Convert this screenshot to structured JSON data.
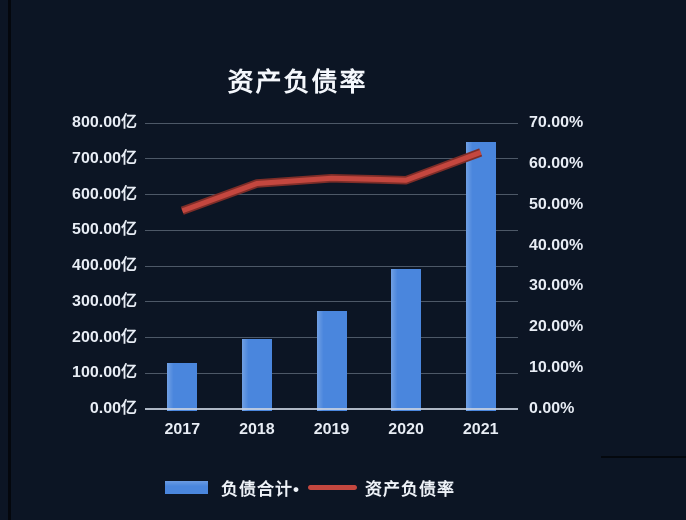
{
  "chart_data": {
    "type": "bar",
    "subtype": "bar+line combo, dual axis",
    "title": "资产负债率",
    "categories": [
      "2017",
      "2018",
      "2019",
      "2020",
      "2021"
    ],
    "series": [
      {
        "name": "负债合计",
        "chart_type": "bar",
        "axis": "left",
        "unit": "亿",
        "values": [
          130,
          197,
          275,
          393,
          748
        ],
        "color": "#4a86dd"
      },
      {
        "name": "资产负债率",
        "chart_type": "line",
        "axis": "right",
        "unit": "%",
        "values": [
          48.5,
          55.2,
          56.5,
          56.0,
          62.8
        ],
        "color": "#c4473f"
      }
    ],
    "left_axis": {
      "min": 0,
      "max": 800,
      "step": 100,
      "unit": "亿",
      "tick_labels": [
        "800.00亿",
        "700.00亿",
        "600.00亿",
        "500.00亿",
        "400.00亿",
        "300.00亿",
        "200.00亿",
        "100.00亿",
        "0.00亿"
      ]
    },
    "right_axis": {
      "min": 0,
      "max": 70,
      "step": 10,
      "unit": "%",
      "tick_labels": [
        "70.00%",
        "60.00%",
        "50.00%",
        "40.00%",
        "30.00%",
        "20.00%",
        "10.00%",
        "0.00%"
      ]
    },
    "grid": "horizontal",
    "legend_position": "bottom"
  },
  "legend": {
    "items": [
      {
        "label": "负债合计•",
        "swatch": "bar-blue"
      },
      {
        "label": "资产负债率",
        "swatch": "line-red"
      }
    ]
  },
  "colors": {
    "background": "#0c1524",
    "bar": "#4a86dd",
    "bar_highlight": "rgba(255,255,255,0.22)",
    "line": "#c4473f",
    "line_edge": "#7e2d28",
    "grid": "rgba(184,197,214,0.38)",
    "axis_line": "rgba(203,212,226,0.85)",
    "text": "#e8edf5",
    "title": "#f4f7fc"
  }
}
